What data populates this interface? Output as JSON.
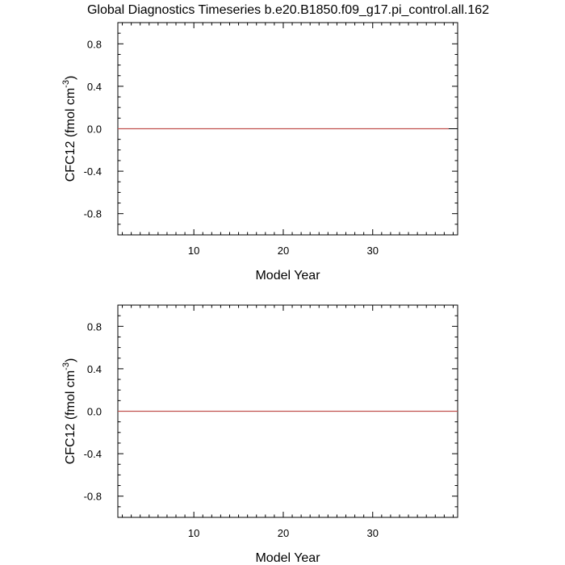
{
  "title": "Global Diagnostics Timeseries b.e20.B1850.f09_g17.pi_control.all.162",
  "chart_data": [
    {
      "type": "line",
      "xlabel": "Model Year",
      "ylabel": "CFC12 (fmol cm",
      "ylabel_sup": "-3",
      "ylabel_close": ")",
      "xlim": [
        1.5,
        39.5
      ],
      "ylim": [
        -1,
        1
      ],
      "xticks": [
        10,
        20,
        30
      ],
      "yticks": [
        -0.8,
        -0.4,
        0.0,
        0.4,
        0.8
      ],
      "ytick_labels": [
        "-0.8",
        "-0.4",
        "0.0",
        "0.4",
        "0.8"
      ],
      "series": [
        {
          "color": "#c0504d",
          "x": [
            1.5,
            38.5
          ],
          "y": [
            0,
            0
          ]
        }
      ],
      "reference_line": {
        "y": 0,
        "color": "#000000"
      }
    },
    {
      "type": "line",
      "xlabel": "Model Year",
      "ylabel": "CFC12 (fmol cm",
      "ylabel_sup": "-3",
      "ylabel_close": ")",
      "xlim": [
        1.5,
        39.5
      ],
      "ylim": [
        -1,
        1
      ],
      "xticks": [
        10,
        20,
        30
      ],
      "yticks": [
        -0.8,
        -0.4,
        0.0,
        0.4,
        0.8
      ],
      "ytick_labels": [
        "-0.8",
        "-0.4",
        "0.0",
        "0.4",
        "0.8"
      ],
      "series": [
        {
          "color": "#c0504d",
          "x": [
            1.5,
            39.5
          ],
          "y": [
            0,
            0
          ]
        }
      ],
      "reference_line": {
        "y": 0,
        "color": "#000000"
      }
    }
  ]
}
